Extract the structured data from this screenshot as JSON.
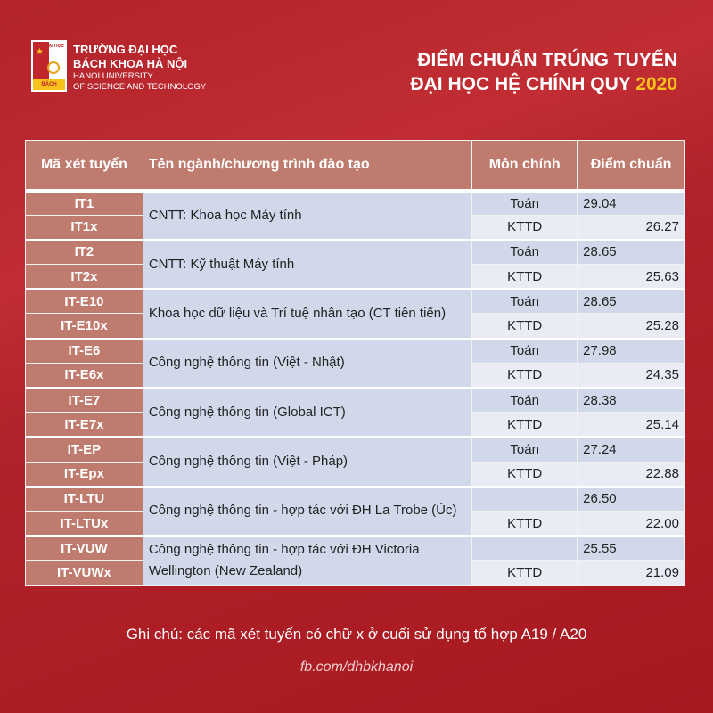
{
  "university": {
    "name_vi_1": "TRƯỜNG ĐẠI HỌC",
    "name_vi_2": "BÁCH KHOA HÀ NỘI",
    "name_en_1": "HANOI UNIVERSITY",
    "name_en_2": "OF SCIENCE AND TECHNOLOGY",
    "logo_text": "BÁCH KHOA",
    "logo_top": "ĐẠI HỌC"
  },
  "title": {
    "line1": "ĐIỂM CHUẨN TRÚNG TUYỂN",
    "line2": "ĐẠI HỌC HỆ CHÍNH QUY",
    "year": "2020"
  },
  "table": {
    "headers": [
      "Mã xét tuyển",
      "Tên ngành/chương trình đào tạo",
      "Môn chính",
      "Điểm chuẩn"
    ],
    "groups": [
      {
        "name": "CNTT: Khoa học Máy tính",
        "rows": [
          {
            "code": "IT1",
            "subject": "Toán",
            "score": "29.04"
          },
          {
            "code": "IT1x",
            "subject": "KTTD",
            "score": "26.27"
          }
        ]
      },
      {
        "name": "CNTT: Kỹ thuật Máy tính",
        "rows": [
          {
            "code": "IT2",
            "subject": "Toán",
            "score": "28.65"
          },
          {
            "code": "IT2x",
            "subject": "KTTD",
            "score": "25.63"
          }
        ]
      },
      {
        "name": "Khoa học dữ liệu và Trí tuệ nhân tạo (CT tiên tiến)",
        "rows": [
          {
            "code": "IT-E10",
            "subject": "Toán",
            "score": "28.65"
          },
          {
            "code": "IT-E10x",
            "subject": "KTTD",
            "score": "25.28"
          }
        ]
      },
      {
        "name": "Công nghệ thông tin (Việt - Nhật)",
        "rows": [
          {
            "code": "IT-E6",
            "subject": "Toán",
            "score": "27.98"
          },
          {
            "code": "IT-E6x",
            "subject": "KTTD",
            "score": "24.35"
          }
        ]
      },
      {
        "name": "Công nghệ thông tin (Global ICT)",
        "rows": [
          {
            "code": "IT-E7",
            "subject": "Toán",
            "score": "28.38"
          },
          {
            "code": "IT-E7x",
            "subject": "KTTD",
            "score": "25.14"
          }
        ]
      },
      {
        "name": "Công nghệ thông tin (Việt - Pháp)",
        "rows": [
          {
            "code": "IT-EP",
            "subject": "Toán",
            "score": "27.24"
          },
          {
            "code": "IT-Epx",
            "subject": "KTTD",
            "score": "22.88"
          }
        ]
      },
      {
        "name": "Công nghệ thông tin - hợp tác với ĐH La Trobe (Úc)",
        "rows": [
          {
            "code": "IT-LTU",
            "subject": "",
            "score": "26.50"
          },
          {
            "code": "IT-LTUx",
            "subject": "KTTD",
            "score": "22.00"
          }
        ]
      },
      {
        "name": "Công nghệ thông tin - hợp tác với ĐH Victoria Wellington (New Zealand)",
        "rows": [
          {
            "code": "IT-VUW",
            "subject": "",
            "score": "25.55"
          },
          {
            "code": "IT-VUWx",
            "subject": "KTTD",
            "score": "21.09"
          }
        ]
      }
    ]
  },
  "footer": {
    "note": "Ghi chú: các mã xét tuyển có chữ x ở cuối sử dụng tổ hợp A19 / A20",
    "link": "fb.com/dhbkhanoi"
  }
}
